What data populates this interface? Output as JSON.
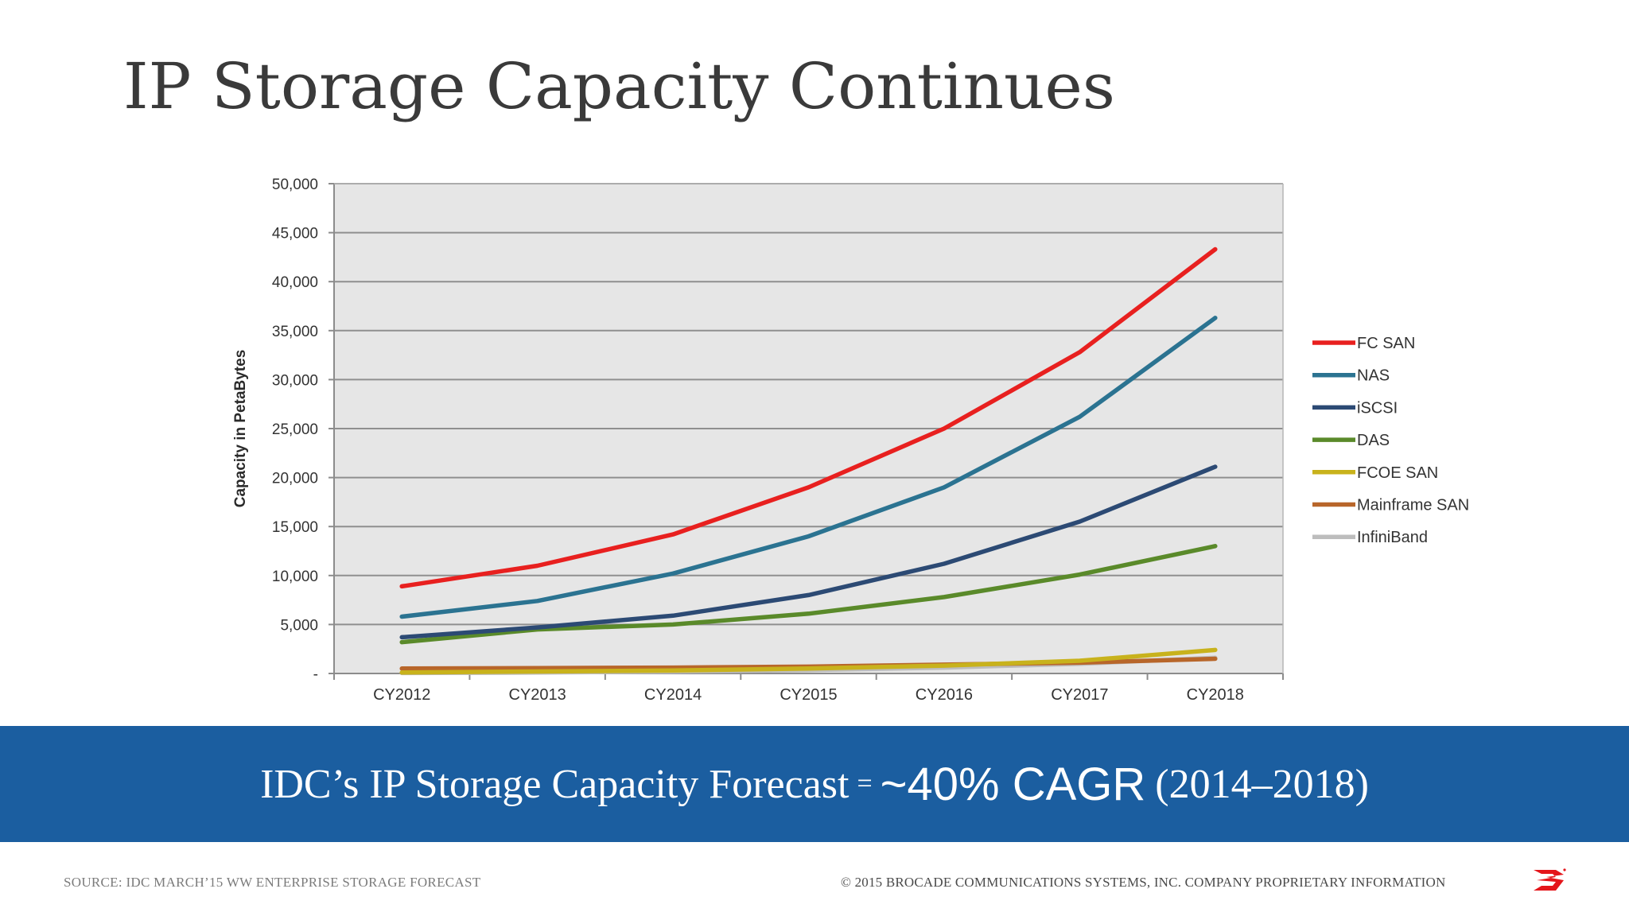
{
  "slide": {
    "title": "IP Storage Capacity Continues"
  },
  "banner": {
    "part1": "IDC’s IP Storage Capacity Forecast",
    "equals": "=",
    "part2": "~40% CAGR",
    "part3": "(2014–2018)"
  },
  "footer": {
    "source": "SOURCE: IDC MARCH’15 WW ENTERPRISE STORAGE FORECAST",
    "copyright": "© 2015 BROCADE COMMUNICATIONS SYSTEMS, INC. COMPANY PROPRIETARY INFORMATION"
  },
  "logo": {
    "name": "brocade-logo-icon",
    "color": "#e4161b"
  },
  "chart_data": {
    "type": "line",
    "title": "",
    "xlabel": "",
    "ylabel": "Capacity in PetaBytes",
    "categories": [
      "CY2012",
      "CY2013",
      "CY2014",
      "CY2015",
      "CY2016",
      "CY2017",
      "CY2018"
    ],
    "ylim": [
      0,
      50000
    ],
    "y_ticks": [
      {
        "value": 0,
        "label": "-"
      },
      {
        "value": 5000,
        "label": "5,000"
      },
      {
        "value": 10000,
        "label": "10,000"
      },
      {
        "value": 15000,
        "label": "15,000"
      },
      {
        "value": 20000,
        "label": "20,000"
      },
      {
        "value": 25000,
        "label": "25,000"
      },
      {
        "value": 30000,
        "label": "30,000"
      },
      {
        "value": 35000,
        "label": "35,000"
      },
      {
        "value": 40000,
        "label": "40,000"
      },
      {
        "value": 45000,
        "label": "45,000"
      },
      {
        "value": 50000,
        "label": "50,000"
      }
    ],
    "grid": true,
    "legend_position": "right",
    "plot_background": "#e6e6e6",
    "series": [
      {
        "name": "FC SAN",
        "color": "#e8201f",
        "values": [
          8900,
          11000,
          14200,
          19000,
          25000,
          32800,
          43300
        ]
      },
      {
        "name": "NAS",
        "color": "#2b7391",
        "values": [
          5800,
          7400,
          10200,
          14000,
          19000,
          26200,
          36300
        ]
      },
      {
        "name": "iSCSI",
        "color": "#2c4a74",
        "values": [
          3700,
          4700,
          5900,
          8000,
          11200,
          15500,
          21100
        ]
      },
      {
        "name": "DAS",
        "color": "#5a8a2a",
        "values": [
          3200,
          4500,
          5000,
          6100,
          7800,
          10100,
          13000
        ]
      },
      {
        "name": "FCOE SAN",
        "color": "#c8b21c",
        "values": [
          100,
          200,
          300,
          500,
          800,
          1300,
          2400
        ]
      },
      {
        "name": "Mainframe SAN",
        "color": "#b8662a",
        "values": [
          500,
          550,
          600,
          700,
          900,
          1100,
          1500
        ]
      },
      {
        "name": "InfiniBand",
        "color": "#bdbdbd",
        "values": [
          50,
          100,
          200,
          350,
          600,
          1000,
          1600
        ]
      }
    ]
  }
}
